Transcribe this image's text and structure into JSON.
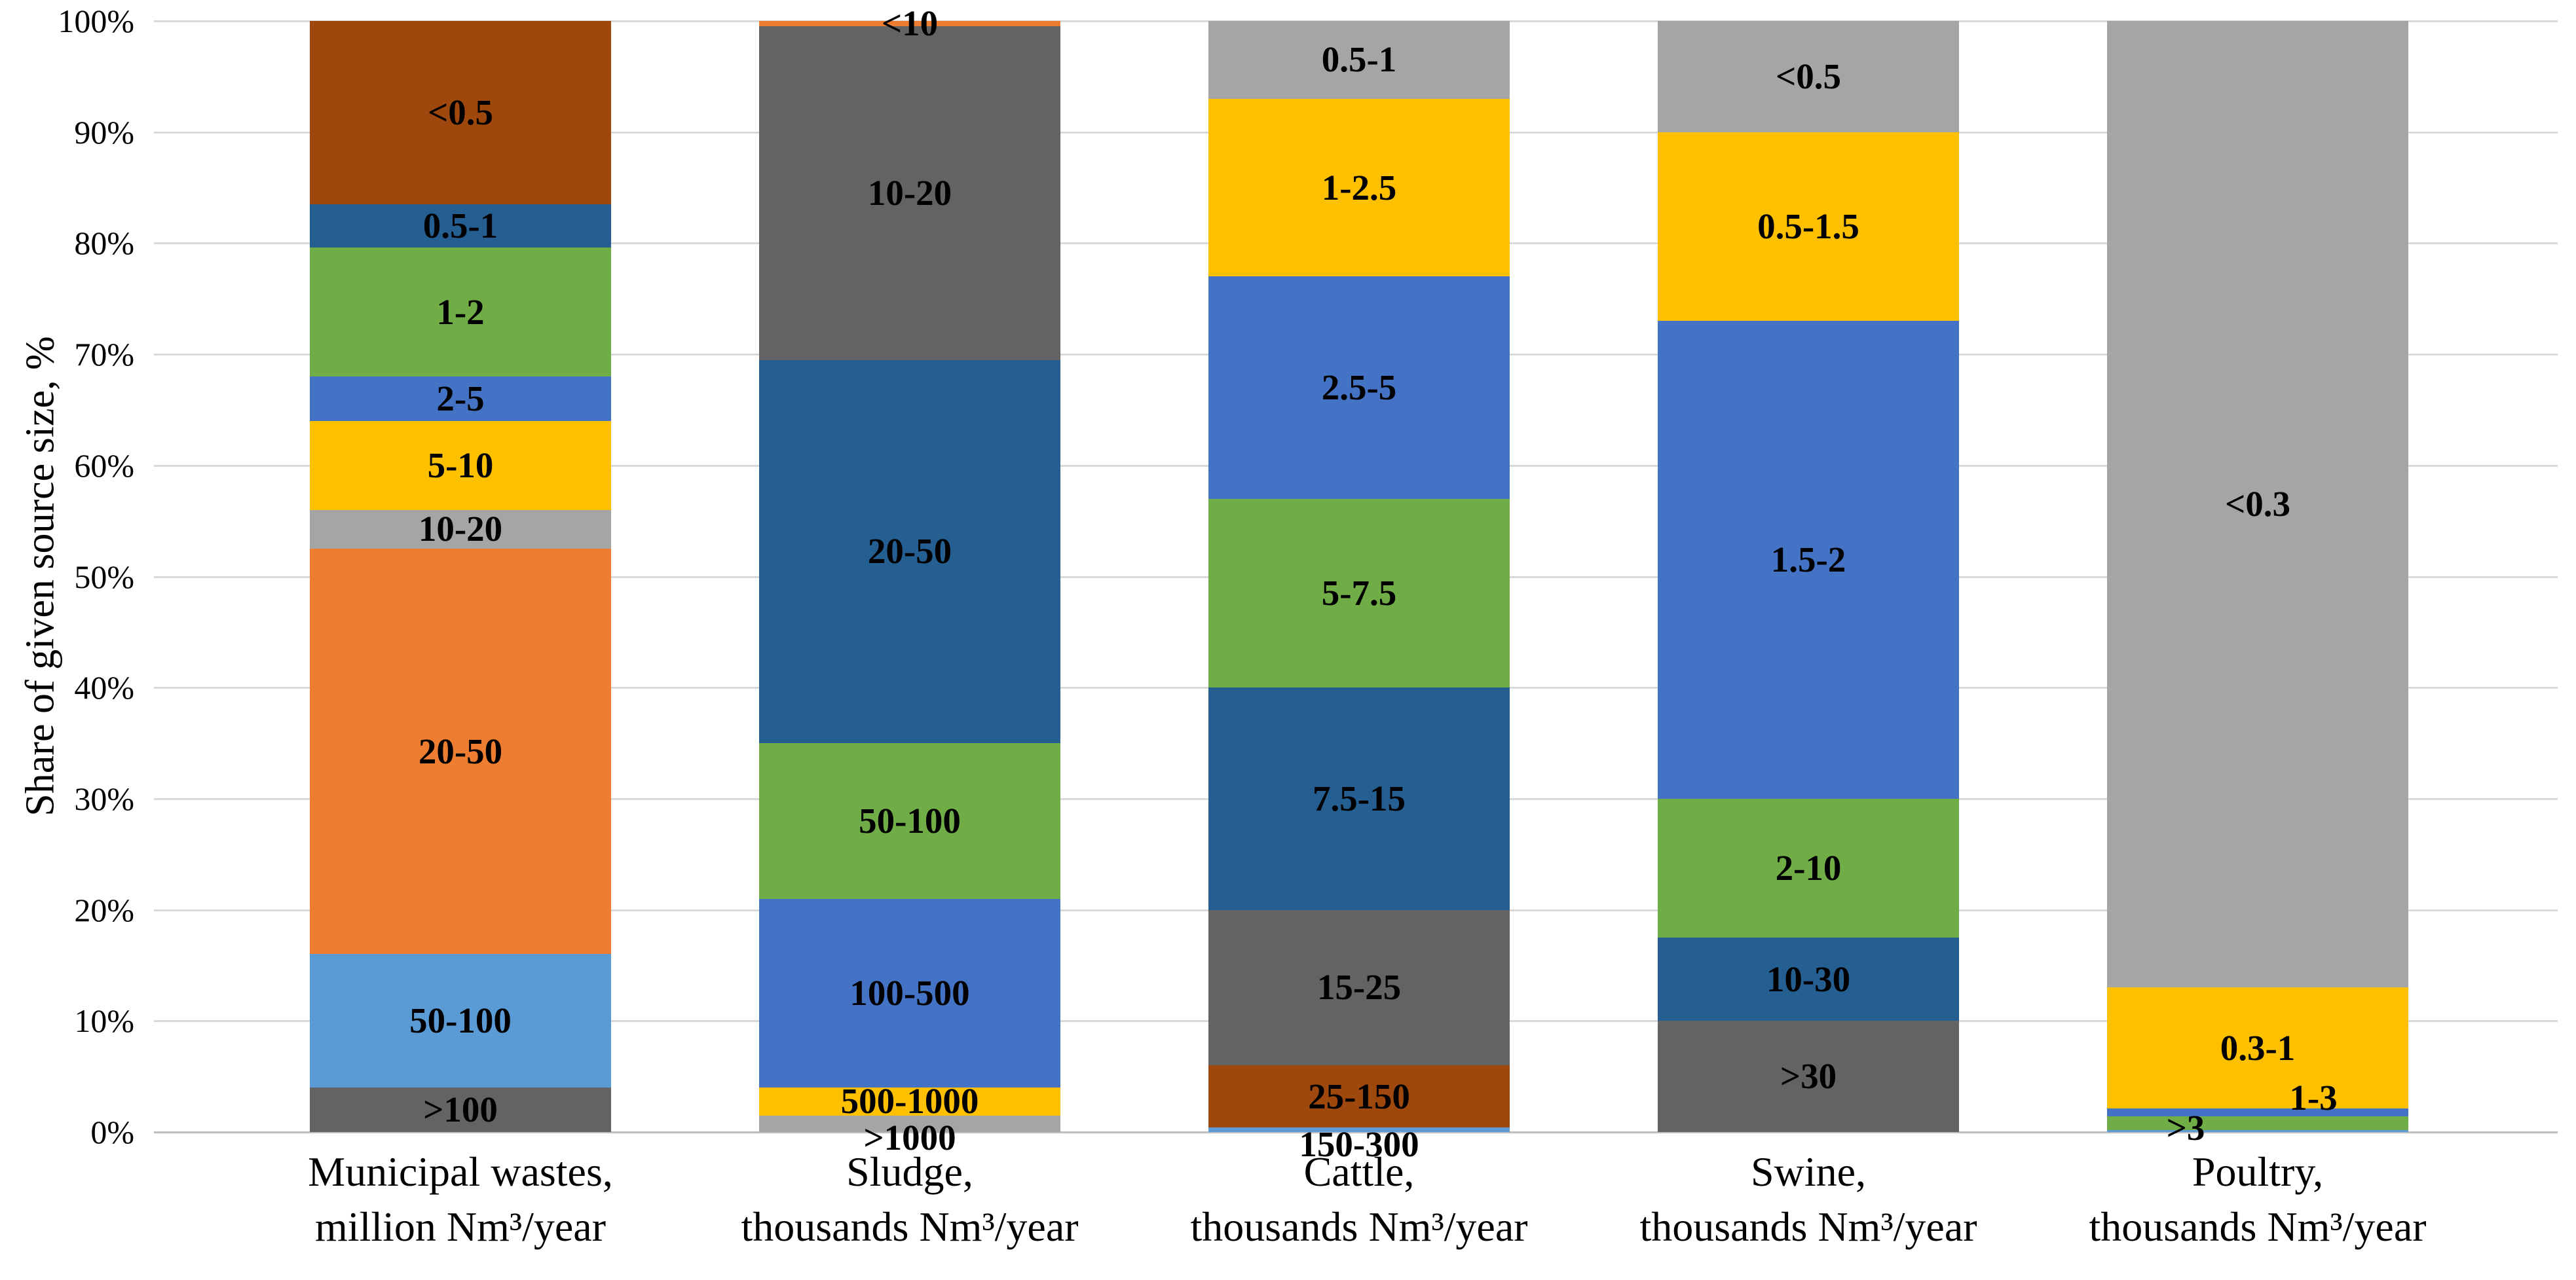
{
  "chart_data": {
    "type": "bar",
    "subtype": "percent-stacked-column",
    "title": "",
    "xlabel": "",
    "ylabel": "Share of given source size, %",
    "ylim": [
      0,
      100
    ],
    "grid": true,
    "legend": "none",
    "y_tick_labels": [
      "0%",
      "10%",
      "20%",
      "30%",
      "40%",
      "50%",
      "60%",
      "70%",
      "80%",
      "90%",
      "100%"
    ],
    "label_note": "segments listed bottom-to-top, values are percent shares",
    "bars": [
      {
        "category": "Municipal wastes,",
        "unit": "million Nm³/year",
        "segments": [
          {
            "label": ">100",
            "value": 4,
            "color": "#636363"
          },
          {
            "label": "50-100",
            "value": 12,
            "color": "#5B9BD5"
          },
          {
            "label": "20-50",
            "value": 36.5,
            "color": "#ED7D31"
          },
          {
            "label": "10-20",
            "value": 3.5,
            "color": "#A5A5A5"
          },
          {
            "label": "5-10",
            "value": 8,
            "color": "#FFC000"
          },
          {
            "label": "2-5",
            "value": 4,
            "color": "#4472C4"
          },
          {
            "label": "1-2",
            "value": 11.6,
            "color": "#70AD47"
          },
          {
            "label": "0.5-1",
            "value": 3.9,
            "color": "#255E91"
          },
          {
            "label": "<0.5",
            "value": 16.5,
            "color": "#9E480E"
          }
        ]
      },
      {
        "category": "Sludge,",
        "unit": "thousands Nm³/year",
        "segments": [
          {
            "label": ">1000",
            "value": 1.5,
            "color": "#A5A5A5",
            "label_dy": 22
          },
          {
            "label": "500-1000",
            "value": 2.5,
            "color": "#FFC000"
          },
          {
            "label": "100-500",
            "value": 17,
            "color": "#4472C4"
          },
          {
            "label": "50-100",
            "value": 14,
            "color": "#70AD47"
          },
          {
            "label": "20-50",
            "value": 34.5,
            "color": "#255E91"
          },
          {
            "label": "10-20",
            "value": 30,
            "color": "#636363"
          },
          {
            "label": "<10",
            "value": 0.5,
            "color": "#ED7D31"
          }
        ]
      },
      {
        "category": "Cattle,",
        "unit": "thousands Nm³/year",
        "segments": [
          {
            "label": "150-300",
            "value": 0.4,
            "color": "#5B9BD5",
            "label_dy": 22
          },
          {
            "label": "25-150",
            "value": 5.6,
            "color": "#9E480E"
          },
          {
            "label": "15-25",
            "value": 14,
            "color": "#636363"
          },
          {
            "label": "7.5-15",
            "value": 20,
            "color": "#255E91"
          },
          {
            "label": "5-7.5",
            "value": 17,
            "color": "#70AD47"
          },
          {
            "label": "2.5-5",
            "value": 20,
            "color": "#4472C4"
          },
          {
            "label": "1-2.5",
            "value": 16,
            "color": "#FFC000"
          },
          {
            "label": "0.5-1",
            "value": 7,
            "color": "#A5A5A5"
          }
        ]
      },
      {
        "category": "Swine,",
        "unit": "thousands Nm³/year",
        "segments": [
          {
            "label": ">30",
            "value": 10,
            "color": "#636363"
          },
          {
            "label": "10-30",
            "value": 7.5,
            "color": "#255E91"
          },
          {
            "label": "2-10",
            "value": 12.5,
            "color": "#70AD47"
          },
          {
            "label": "1.5-2",
            "value": 43,
            "color": "#4472C4"
          },
          {
            "label": "0.5-1.5",
            "value": 17,
            "color": "#FFC000"
          },
          {
            "label": "<0.5",
            "value": 10,
            "color": "#A5A5A5"
          }
        ]
      },
      {
        "category": "Poultry,",
        "unit": "thousands Nm³/year",
        "segments": [
          {
            "label": "",
            "value": 0.2,
            "color": "#5B9BD5"
          },
          {
            "label": ">3",
            "value": 1.2,
            "color": "#70AD47",
            "label_dx": -110,
            "label_dy": 8
          },
          {
            "label": "1-3",
            "value": 0.7,
            "color": "#4472C4",
            "label_dx": 85,
            "label_dy": -22
          },
          {
            "label": "0.3-1",
            "value": 10.9,
            "color": "#FFC000"
          },
          {
            "label": "<0.3",
            "value": 87,
            "color": "#A5A5A5"
          }
        ]
      }
    ]
  }
}
